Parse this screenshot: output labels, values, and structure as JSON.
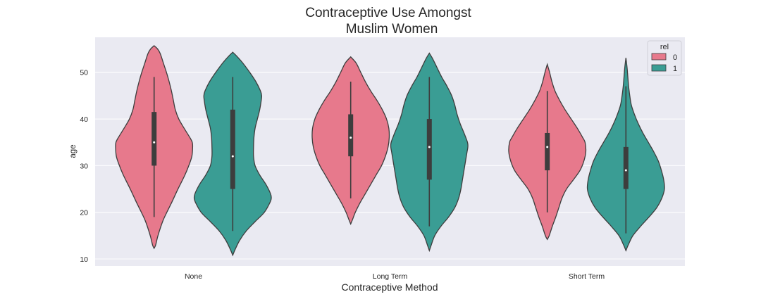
{
  "chart_data": {
    "type": "violin",
    "title": [
      "Contraceptive Use Amongst",
      "Muslim Women"
    ],
    "xlabel": "Contraceptive Method",
    "ylabel": "age",
    "categories": [
      "None",
      "Long Term",
      "Short Term"
    ],
    "y_ticks": [
      10,
      20,
      30,
      40,
      50
    ],
    "ylim": [
      8.5,
      57.5
    ],
    "grid": true,
    "legend": {
      "title": "rel",
      "placement": "top-right",
      "entries": [
        "0",
        "1"
      ]
    },
    "colors": {
      "0": "#e7798c",
      "1": "#3a9d94",
      "background": "#eaeaf2",
      "box": "#3d3d3d"
    },
    "series": [
      {
        "name": "0",
        "violins": [
          {
            "category": "None",
            "kde_min": 12.3,
            "kde_max": 55.7,
            "whisker_low": 19,
            "whisker_high": 49,
            "q1": 30,
            "median": 35,
            "q3": 41.5,
            "profile": [
              [
                12.3,
                0
              ],
              [
                13,
                0.04
              ],
              [
                15,
                0.1
              ],
              [
                18,
                0.22
              ],
              [
                20,
                0.33
              ],
              [
                22,
                0.45
              ],
              [
                25,
                0.62
              ],
              [
                28,
                0.8
              ],
              [
                30,
                0.9
              ],
              [
                32,
                0.98
              ],
              [
                34,
                1.0
              ],
              [
                35,
                0.99
              ],
              [
                36,
                0.93
              ],
              [
                38,
                0.78
              ],
              [
                40,
                0.64
              ],
              [
                42,
                0.55
              ],
              [
                44,
                0.5
              ],
              [
                46,
                0.45
              ],
              [
                48,
                0.39
              ],
              [
                50,
                0.32
              ],
              [
                52,
                0.24
              ],
              [
                54,
                0.16
              ],
              [
                55,
                0.09
              ],
              [
                55.7,
                0
              ]
            ]
          },
          {
            "category": "Long Term",
            "kde_min": 17.5,
            "kde_max": 53.3,
            "whisker_low": 23,
            "whisker_high": 48,
            "q1": 32,
            "median": 36,
            "q3": 41,
            "profile": [
              [
                17.5,
                0
              ],
              [
                18.5,
                0.05
              ],
              [
                20,
                0.12
              ],
              [
                22,
                0.24
              ],
              [
                24,
                0.38
              ],
              [
                26,
                0.52
              ],
              [
                28,
                0.66
              ],
              [
                30,
                0.8
              ],
              [
                32,
                0.9
              ],
              [
                34,
                0.97
              ],
              [
                36,
                1.0
              ],
              [
                38,
                0.99
              ],
              [
                40,
                0.93
              ],
              [
                42,
                0.82
              ],
              [
                44,
                0.68
              ],
              [
                46,
                0.52
              ],
              [
                48,
                0.38
              ],
              [
                50,
                0.26
              ],
              [
                52,
                0.14
              ],
              [
                53.3,
                0
              ]
            ]
          },
          {
            "category": "Short Term",
            "kde_min": 14.2,
            "kde_max": 51.7,
            "whisker_low": 20,
            "whisker_high": 46,
            "q1": 29,
            "median": 34,
            "q3": 37,
            "profile": [
              [
                14.2,
                0
              ],
              [
                15,
                0.05
              ],
              [
                17,
                0.13
              ],
              [
                19,
                0.22
              ],
              [
                21,
                0.3
              ],
              [
                23,
                0.38
              ],
              [
                25,
                0.5
              ],
              [
                27,
                0.68
              ],
              [
                29,
                0.85
              ],
              [
                31,
                0.95
              ],
              [
                33,
                1.0
              ],
              [
                35,
                0.98
              ],
              [
                36,
                0.92
              ],
              [
                38,
                0.78
              ],
              [
                40,
                0.62
              ],
              [
                42,
                0.46
              ],
              [
                44,
                0.32
              ],
              [
                46,
                0.2
              ],
              [
                48,
                0.12
              ],
              [
                50,
                0.06
              ],
              [
                51.7,
                0
              ]
            ]
          }
        ]
      },
      {
        "name": "1",
        "violins": [
          {
            "category": "None",
            "kde_min": 10.8,
            "kde_max": 54.3,
            "whisker_low": 16,
            "whisker_high": 49,
            "q1": 25,
            "median": 32,
            "q3": 42,
            "profile": [
              [
                10.8,
                0
              ],
              [
                12,
                0.06
              ],
              [
                14,
                0.18
              ],
              [
                16,
                0.35
              ],
              [
                18,
                0.58
              ],
              [
                20,
                0.82
              ],
              [
                22,
                0.96
              ],
              [
                23,
                1.0
              ],
              [
                24,
                0.98
              ],
              [
                26,
                0.86
              ],
              [
                28,
                0.7
              ],
              [
                30,
                0.58
              ],
              [
                32,
                0.54
              ],
              [
                34,
                0.54
              ],
              [
                36,
                0.55
              ],
              [
                38,
                0.58
              ],
              [
                40,
                0.64
              ],
              [
                42,
                0.7
              ],
              [
                44,
                0.74
              ],
              [
                45,
                0.75
              ],
              [
                46,
                0.72
              ],
              [
                48,
                0.6
              ],
              [
                50,
                0.44
              ],
              [
                52,
                0.26
              ],
              [
                53.5,
                0.1
              ],
              [
                54.3,
                0
              ]
            ]
          },
          {
            "category": "Long Term",
            "kde_min": 11.8,
            "kde_max": 54.1,
            "whisker_low": 17,
            "whisker_high": 49,
            "q1": 27,
            "median": 34,
            "q3": 40,
            "profile": [
              [
                11.8,
                0
              ],
              [
                13,
                0.05
              ],
              [
                15,
                0.14
              ],
              [
                17,
                0.3
              ],
              [
                19,
                0.5
              ],
              [
                21,
                0.66
              ],
              [
                23,
                0.76
              ],
              [
                25,
                0.82
              ],
              [
                27,
                0.86
              ],
              [
                29,
                0.9
              ],
              [
                31,
                0.94
              ],
              [
                33,
                0.98
              ],
              [
                34,
                1.0
              ],
              [
                35,
                0.99
              ],
              [
                37,
                0.9
              ],
              [
                39,
                0.8
              ],
              [
                41,
                0.72
              ],
              [
                43,
                0.66
              ],
              [
                45,
                0.58
              ],
              [
                47,
                0.46
              ],
              [
                49,
                0.32
              ],
              [
                51,
                0.2
              ],
              [
                53,
                0.08
              ],
              [
                54.1,
                0
              ]
            ]
          },
          {
            "category": "Short Term",
            "kde_min": 11.8,
            "kde_max": 53.1,
            "whisker_low": 15.5,
            "whisker_high": 47,
            "q1": 25,
            "median": 29,
            "q3": 34,
            "profile": [
              [
                11.8,
                0
              ],
              [
                13,
                0.06
              ],
              [
                15,
                0.18
              ],
              [
                17,
                0.38
              ],
              [
                19,
                0.6
              ],
              [
                21,
                0.8
              ],
              [
                23,
                0.93
              ],
              [
                25,
                1.0
              ],
              [
                27,
                0.98
              ],
              [
                29,
                0.92
              ],
              [
                31,
                0.84
              ],
              [
                33,
                0.72
              ],
              [
                35,
                0.58
              ],
              [
                37,
                0.44
              ],
              [
                39,
                0.32
              ],
              [
                41,
                0.22
              ],
              [
                43,
                0.14
              ],
              [
                45,
                0.1
              ],
              [
                47,
                0.07
              ],
              [
                49,
                0.05
              ],
              [
                51,
                0.03
              ],
              [
                53.1,
                0
              ]
            ]
          }
        ]
      }
    ]
  }
}
